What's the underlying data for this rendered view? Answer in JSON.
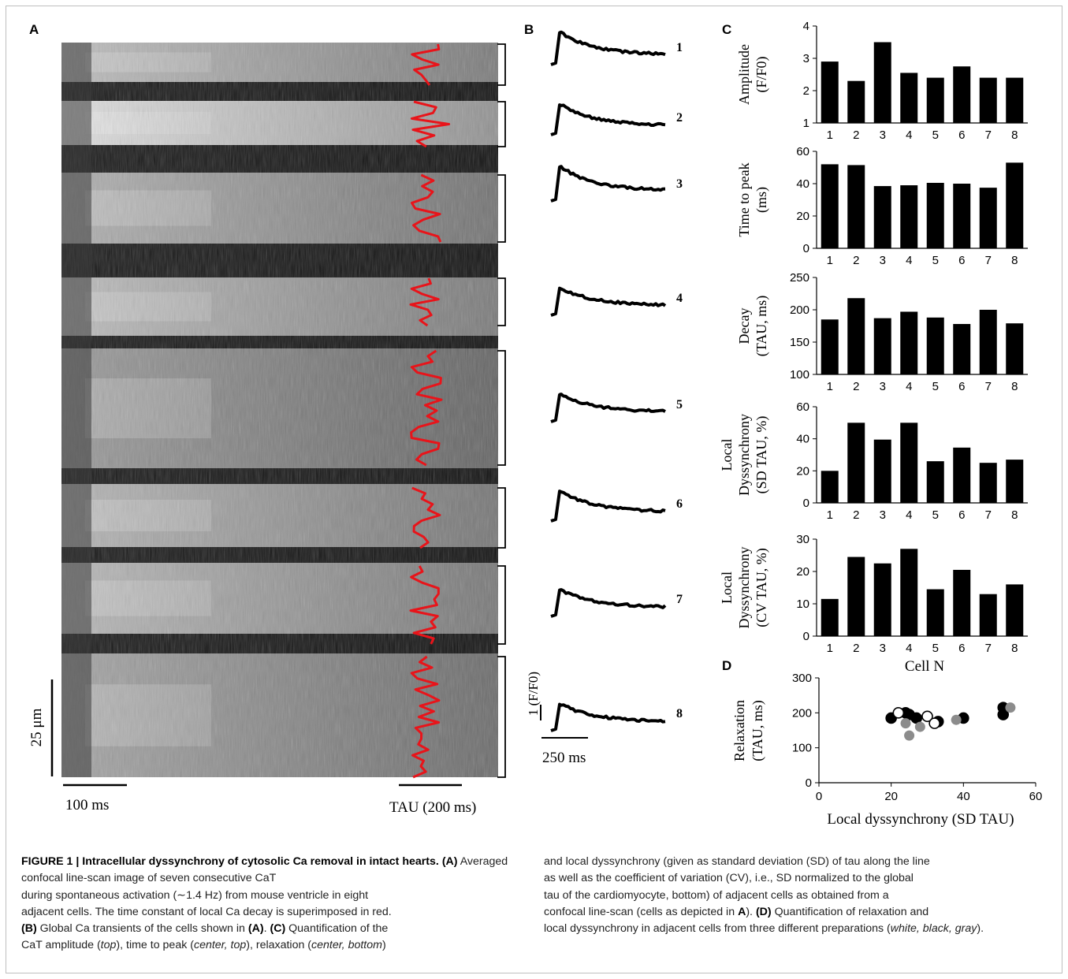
{
  "panels": {
    "A": {
      "label": "A",
      "scale_um": "25 μm",
      "scale_time": "100 ms",
      "scale_tau": "TAU (200 ms)"
    },
    "B": {
      "label": "B",
      "trace_labels": [
        "1",
        "2",
        "3",
        "4",
        "5",
        "6",
        "7",
        "8"
      ],
      "scale_y": "1 (F/F0)",
      "scale_x": "250 ms"
    },
    "C": {
      "label": "C",
      "categories": [
        "1",
        "2",
        "3",
        "4",
        "5",
        "6",
        "7",
        "8"
      ],
      "xlabel": "Cell N"
    },
    "D": {
      "label": "D",
      "xlabel": "Local dyssynchrony (SD TAU)",
      "ylabel_line1": "Relaxation",
      "ylabel_line2": "(TAU, ms)"
    }
  },
  "chart_data": [
    {
      "type": "bar",
      "ylabel": "Amplitude (F/F0)",
      "categories": [
        "1",
        "2",
        "3",
        "4",
        "5",
        "6",
        "7",
        "8"
      ],
      "values": [
        2.9,
        2.3,
        3.5,
        2.55,
        2.4,
        2.75,
        2.4,
        2.4
      ],
      "ylim": [
        1,
        4
      ],
      "yticks": [
        1,
        2,
        3,
        4
      ]
    },
    {
      "type": "bar",
      "ylabel": "Time to peak (ms)",
      "categories": [
        "1",
        "2",
        "3",
        "4",
        "5",
        "6",
        "7",
        "8"
      ],
      "values": [
        52,
        51.5,
        38.5,
        39,
        40.5,
        40,
        37.5,
        53
      ],
      "ylim": [
        0,
        60
      ],
      "yticks": [
        0,
        20,
        40,
        60
      ]
    },
    {
      "type": "bar",
      "ylabel": "Decay (TAU, ms)",
      "categories": [
        "1",
        "2",
        "3",
        "4",
        "5",
        "6",
        "7",
        "8"
      ],
      "values": [
        185,
        218,
        187,
        197,
        188,
        178,
        200,
        179
      ],
      "ylim": [
        100,
        250
      ],
      "yticks": [
        100,
        150,
        200,
        250
      ]
    },
    {
      "type": "bar",
      "ylabel": "Local Dyssynchrony (SD TAU, %)",
      "categories": [
        "1",
        "2",
        "3",
        "4",
        "5",
        "6",
        "7",
        "8"
      ],
      "values": [
        20,
        50,
        39.5,
        50,
        26,
        34.5,
        25,
        27
      ],
      "ylim": [
        0,
        60
      ],
      "yticks": [
        0,
        20,
        40,
        60
      ]
    },
    {
      "type": "bar",
      "ylabel": "Local Dyssynchrony (CV TAU, %)",
      "categories": [
        "1",
        "2",
        "3",
        "4",
        "5",
        "6",
        "7",
        "8"
      ],
      "values": [
        11.5,
        24.5,
        22.5,
        27,
        14.5,
        20.5,
        13,
        16
      ],
      "ylim": [
        0,
        30
      ],
      "yticks": [
        0,
        10,
        20,
        30
      ]
    },
    {
      "type": "scatter",
      "xlabel": "Local dyssynchrony (SD TAU)",
      "ylabel": "Relaxation (TAU, ms)",
      "xlim": [
        0,
        60
      ],
      "ylim": [
        0,
        300
      ],
      "xticks": [
        0,
        20,
        40,
        60
      ],
      "yticks": [
        0,
        100,
        200,
        300
      ],
      "series": [
        {
          "fill": "#000000",
          "points": [
            [
              20,
              185
            ],
            [
              24,
              200
            ],
            [
              25,
              195
            ],
            [
              27,
              185
            ],
            [
              33,
              175
            ],
            [
              40,
              185
            ],
            [
              51,
              195
            ],
            [
              51,
              215
            ]
          ]
        },
        {
          "fill": "#ffffff",
          "points": [
            [
              22,
              200
            ],
            [
              30,
              190
            ],
            [
              32,
              170
            ]
          ]
        },
        {
          "fill": "#8c8c8c",
          "points": [
            [
              24,
              170
            ],
            [
              25,
              135
            ],
            [
              28,
              160
            ],
            [
              38,
              180
            ],
            [
              53,
              215
            ]
          ]
        }
      ]
    }
  ],
  "traces": {
    "peaks": [
      0.92,
      0.86,
      0.98,
      0.78,
      0.78,
      0.86,
      0.76,
      0.76
    ],
    "ends": [
      0.28,
      0.26,
      0.3,
      0.28,
      0.28,
      0.26,
      0.26,
      0.26
    ]
  },
  "caption": {
    "title": "FIGURE 1 | Intracellular dyssynchrony of cytosolic Ca removal in intact hearts.",
    "lines_left": [
      "during spontaneous activation (∼1.4 Hz) from mouse ventricle in eight",
      "adjacent cells. The time constant of local Ca decay is superimposed in red."
    ],
    "lines_right": [
      "and local dyssynchrony (given as standard deviation (SD) of tau along the line",
      "as well as the coefficient of variation (CV), i.e., SD normalized to the global",
      "tau of the cardiomyocyte, bottom) of adjacent cells as obtained from a"
    ],
    "a_text": "Averaged confocal line-scan image of seven consecutive CaT",
    "b_text": "Global Ca transients of the cells shown in",
    "c_text": "Quantification of the",
    "c_line2_pre": "CaT amplitude (",
    "top": "top",
    "ttp": "), time to peak (",
    "center_top": "center, top",
    "relax": "), relaxation (",
    "center_bottom": "center, bottom",
    "close": ")",
    "conf_tail": "confocal line-scan (cells as depicted in",
    "d_text": "Quantification of relaxation and",
    "d_line2": "local dyssynchrony in adjacent cells from three different preparations (",
    "d_colors": "white, black, gray",
    "d_end": ").",
    "tag_A": "(A)",
    "tag_B": "(B)",
    "tag_C": "(C)",
    "tag_D": "(D)",
    "tag_A2": "(A)",
    "A_bold": "A",
    "paren_close_dot": ").",
    "dot": "."
  }
}
